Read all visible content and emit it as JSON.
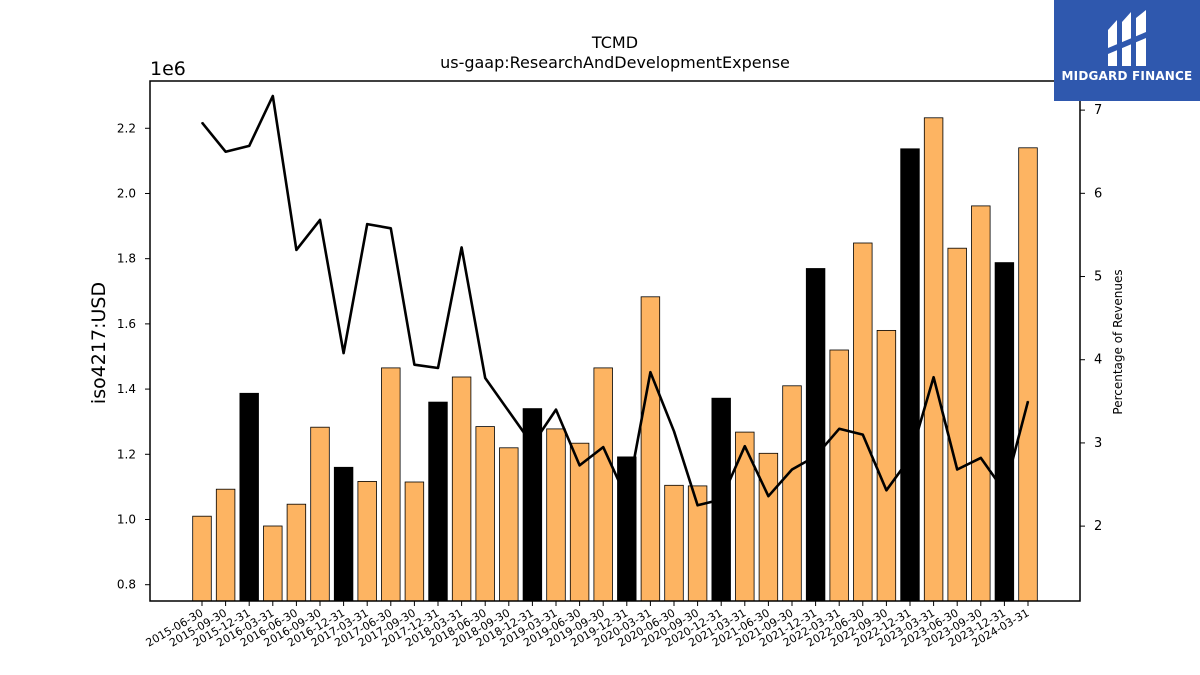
{
  "brand": {
    "name": "MIDGARD FINANCE",
    "icon": "midgard-logo-icon",
    "color": "#2f58ae"
  },
  "chart_data": {
    "type": "bar",
    "title": "TCMD",
    "subtitle": "us-gaap:ResearchAndDevelopmentExpense",
    "ylabel": "iso4217:USD",
    "y_offset_label": "1e6",
    "y2label": "Percentage of Revenues",
    "ylim": [
      0.75,
      2.345
    ],
    "y2lim": [
      1.1,
      7.35
    ],
    "yticks": [
      "0.8",
      "1.0",
      "1.2",
      "1.4",
      "1.6",
      "1.8",
      "2.0",
      "2.2"
    ],
    "y2ticks": [
      "2",
      "3",
      "4",
      "5",
      "6",
      "7"
    ],
    "grid": false,
    "categories": [
      "2015-06-30",
      "2015-09-30",
      "2015-12-31",
      "2016-03-31",
      "2016-06-30",
      "2016-09-30",
      "2016-12-31",
      "2017-03-31",
      "2017-06-30",
      "2017-09-30",
      "2017-12-31",
      "2018-03-31",
      "2018-06-30",
      "2018-09-30",
      "2018-12-31",
      "2019-03-31",
      "2019-06-30",
      "2019-09-30",
      "2019-12-31",
      "2020-03-31",
      "2020-06-30",
      "2020-09-30",
      "2020-12-31",
      "2021-03-31",
      "2021-06-30",
      "2021-09-30",
      "2021-12-31",
      "2022-03-31",
      "2022-06-30",
      "2022-09-30",
      "2022-12-31",
      "2023-03-31",
      "2023-06-30",
      "2023-09-30",
      "2023-12-31",
      "2024-03-31"
    ],
    "series": [
      {
        "type": "bar",
        "axis": "left",
        "values": [
          1.01,
          1.093,
          1.387,
          0.98,
          1.047,
          1.283,
          1.16,
          1.117,
          1.465,
          1.115,
          1.36,
          1.437,
          1.285,
          1.22,
          1.34,
          1.278,
          1.234,
          1.465,
          1.192,
          1.683,
          1.105,
          1.103,
          1.372,
          1.268,
          1.203,
          1.41,
          1.77,
          1.52,
          1.848,
          1.58,
          2.137,
          2.232,
          1.832,
          1.962,
          1.788,
          2.14
        ],
        "quarter_end_color": "#000000",
        "other_color": "#fdb462"
      },
      {
        "type": "line",
        "axis": "right",
        "color": "#000000",
        "values": [
          6.85,
          6.5,
          6.57,
          7.17,
          5.32,
          5.68,
          4.08,
          5.63,
          5.58,
          3.94,
          3.9,
          5.35,
          3.78,
          3.38,
          2.98,
          3.4,
          2.73,
          2.95,
          2.33,
          3.85,
          3.14,
          2.25,
          2.32,
          2.96,
          2.36,
          2.68,
          2.84,
          3.17,
          3.1,
          2.43,
          2.82,
          3.79,
          2.68,
          2.82,
          2.42,
          3.5
        ]
      }
    ]
  }
}
